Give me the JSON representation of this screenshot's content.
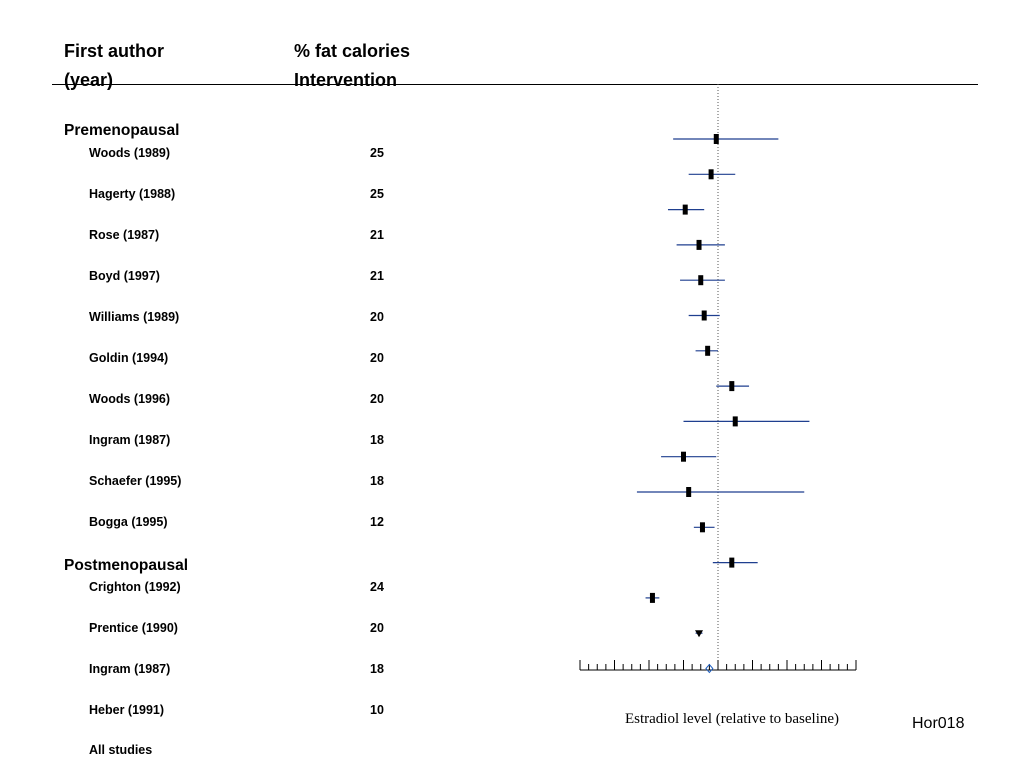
{
  "header": {
    "author_line1": "First author",
    "author_line2": "(year)",
    "pct_line1": "% fat calories",
    "pct_line2": "Intervention"
  },
  "groups": {
    "pre": "Premenopausal",
    "post": "Postmenopausal"
  },
  "studies": [
    {
      "name": "Woods (1989)",
      "pct": "25"
    },
    {
      "name": "Hagerty (1988)",
      "pct": "25"
    },
    {
      "name": "Rose (1987)",
      "pct": "21"
    },
    {
      "name": "Boyd (1997)",
      "pct": "21"
    },
    {
      "name": "Williams (1989)",
      "pct": "20"
    },
    {
      "name": "Goldin (1994)",
      "pct": "20"
    },
    {
      "name": "Woods (1996)",
      "pct": "20"
    },
    {
      "name": "Ingram (1987)",
      "pct": "18"
    },
    {
      "name": "Schaefer (1995)",
      "pct": "18"
    },
    {
      "name": "Bogga (1995)",
      "pct": "12"
    },
    {
      "name": "Crighton (1992)",
      "pct": "24"
    },
    {
      "name": "Prentice (1990)",
      "pct": "20"
    },
    {
      "name": "Ingram (1987)",
      "pct": "18"
    },
    {
      "name": "Heber (1991)",
      "pct": "10"
    }
  ],
  "all_studies_label": "All studies",
  "slide_code": "Hor018",
  "chart_data": {
    "type": "forest",
    "xlabel": "Estradiol level (relative to baseline)",
    "xlim": [
      0.6,
      1.4
    ],
    "reference_line": 1.0,
    "tick_step": 0.025,
    "colors": {
      "ci_line": "#1f3f8f",
      "point": "#000000",
      "pooled": "#1f5fbf",
      "reference": "#555555"
    },
    "points": [
      {
        "est": 0.995,
        "lo": 0.87,
        "hi": 1.175
      },
      {
        "est": 0.98,
        "lo": 0.915,
        "hi": 1.05
      },
      {
        "est": 0.905,
        "lo": 0.855,
        "hi": 0.96
      },
      {
        "est": 0.945,
        "lo": 0.88,
        "hi": 1.02
      },
      {
        "est": 0.95,
        "lo": 0.89,
        "hi": 1.02
      },
      {
        "est": 0.96,
        "lo": 0.915,
        "hi": 1.005
      },
      {
        "est": 0.97,
        "lo": 0.935,
        "hi": 1.0
      },
      {
        "est": 1.04,
        "lo": 0.995,
        "hi": 1.09
      },
      {
        "est": 1.05,
        "lo": 0.9,
        "hi": 1.265
      },
      {
        "est": 0.9,
        "lo": 0.835,
        "hi": 0.995
      },
      {
        "est": 0.915,
        "lo": 0.765,
        "hi": 1.25
      },
      {
        "est": 0.955,
        "lo": 0.93,
        "hi": 0.99
      },
      {
        "est": 1.04,
        "lo": 0.985,
        "hi": 1.115
      },
      {
        "est": 0.81,
        "lo": 0.79,
        "hi": 0.83
      },
      {
        "est": 0.945,
        "lo": 0.935,
        "hi": 0.955,
        "marker": "triangle"
      },
      {
        "est": 0.975,
        "lo": 0.965,
        "hi": 0.985,
        "marker": "diamond",
        "pooled": true
      }
    ]
  }
}
